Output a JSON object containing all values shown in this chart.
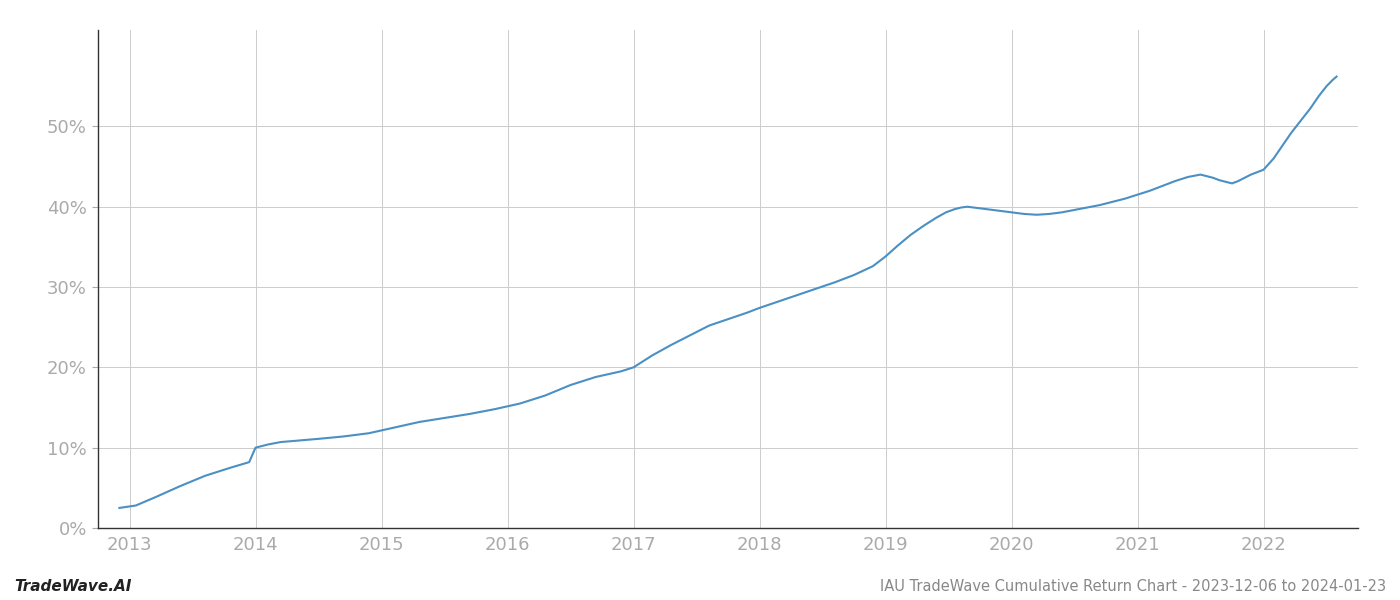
{
  "title": "IAU TradeWave Cumulative Return Chart - 2023-12-06 to 2024-01-23",
  "watermark": "TradeWave.AI",
  "line_color": "#4a90c4",
  "background_color": "#ffffff",
  "grid_color": "#cccccc",
  "x_years": [
    2013,
    2014,
    2015,
    2016,
    2017,
    2018,
    2019,
    2020,
    2021,
    2022
  ],
  "data_points": [
    [
      2012.92,
      0.025
    ],
    [
      2013.05,
      0.028
    ],
    [
      2013.2,
      0.038
    ],
    [
      2013.4,
      0.052
    ],
    [
      2013.6,
      0.065
    ],
    [
      2013.8,
      0.075
    ],
    [
      2013.95,
      0.082
    ],
    [
      2014.0,
      0.1
    ],
    [
      2014.1,
      0.104
    ],
    [
      2014.2,
      0.107
    ],
    [
      2014.35,
      0.109
    ],
    [
      2014.5,
      0.111
    ],
    [
      2014.7,
      0.114
    ],
    [
      2014.9,
      0.118
    ],
    [
      2015.1,
      0.125
    ],
    [
      2015.3,
      0.132
    ],
    [
      2015.5,
      0.137
    ],
    [
      2015.7,
      0.142
    ],
    [
      2015.9,
      0.148
    ],
    [
      2016.1,
      0.155
    ],
    [
      2016.3,
      0.165
    ],
    [
      2016.5,
      0.178
    ],
    [
      2016.7,
      0.188
    ],
    [
      2016.9,
      0.195
    ],
    [
      2017.0,
      0.2
    ],
    [
      2017.15,
      0.215
    ],
    [
      2017.3,
      0.228
    ],
    [
      2017.45,
      0.24
    ],
    [
      2017.6,
      0.252
    ],
    [
      2017.75,
      0.26
    ],
    [
      2017.9,
      0.268
    ],
    [
      2018.0,
      0.274
    ],
    [
      2018.15,
      0.282
    ],
    [
      2018.3,
      0.29
    ],
    [
      2018.45,
      0.298
    ],
    [
      2018.6,
      0.306
    ],
    [
      2018.75,
      0.315
    ],
    [
      2018.9,
      0.326
    ],
    [
      2019.0,
      0.338
    ],
    [
      2019.1,
      0.352
    ],
    [
      2019.2,
      0.365
    ],
    [
      2019.3,
      0.376
    ],
    [
      2019.4,
      0.386
    ],
    [
      2019.48,
      0.393
    ],
    [
      2019.55,
      0.397
    ],
    [
      2019.6,
      0.399
    ],
    [
      2019.65,
      0.4
    ],
    [
      2019.7,
      0.399
    ],
    [
      2019.8,
      0.397
    ],
    [
      2019.9,
      0.395
    ],
    [
      2020.0,
      0.393
    ],
    [
      2020.1,
      0.391
    ],
    [
      2020.2,
      0.39
    ],
    [
      2020.3,
      0.391
    ],
    [
      2020.4,
      0.393
    ],
    [
      2020.5,
      0.396
    ],
    [
      2020.6,
      0.399
    ],
    [
      2020.7,
      0.402
    ],
    [
      2020.8,
      0.406
    ],
    [
      2020.9,
      0.41
    ],
    [
      2021.0,
      0.415
    ],
    [
      2021.1,
      0.42
    ],
    [
      2021.2,
      0.426
    ],
    [
      2021.3,
      0.432
    ],
    [
      2021.4,
      0.437
    ],
    [
      2021.5,
      0.44
    ],
    [
      2021.55,
      0.438
    ],
    [
      2021.6,
      0.436
    ],
    [
      2021.65,
      0.433
    ],
    [
      2021.7,
      0.431
    ],
    [
      2021.75,
      0.429
    ],
    [
      2021.8,
      0.432
    ],
    [
      2021.85,
      0.436
    ],
    [
      2021.9,
      0.44
    ],
    [
      2021.95,
      0.443
    ],
    [
      2022.0,
      0.446
    ],
    [
      2022.08,
      0.46
    ],
    [
      2022.15,
      0.476
    ],
    [
      2022.22,
      0.492
    ],
    [
      2022.3,
      0.508
    ],
    [
      2022.37,
      0.522
    ],
    [
      2022.44,
      0.538
    ],
    [
      2022.5,
      0.55
    ],
    [
      2022.55,
      0.558
    ],
    [
      2022.58,
      0.562
    ]
  ],
  "ylim": [
    0.0,
    0.62
  ],
  "xlim": [
    2012.75,
    2022.75
  ],
  "yticks": [
    0.0,
    0.1,
    0.2,
    0.3,
    0.4,
    0.5
  ],
  "line_width": 1.5,
  "title_fontsize": 10.5,
  "watermark_fontsize": 11,
  "tick_color": "#aaaaaa",
  "tick_fontsize": 13,
  "spine_color": "#333333"
}
